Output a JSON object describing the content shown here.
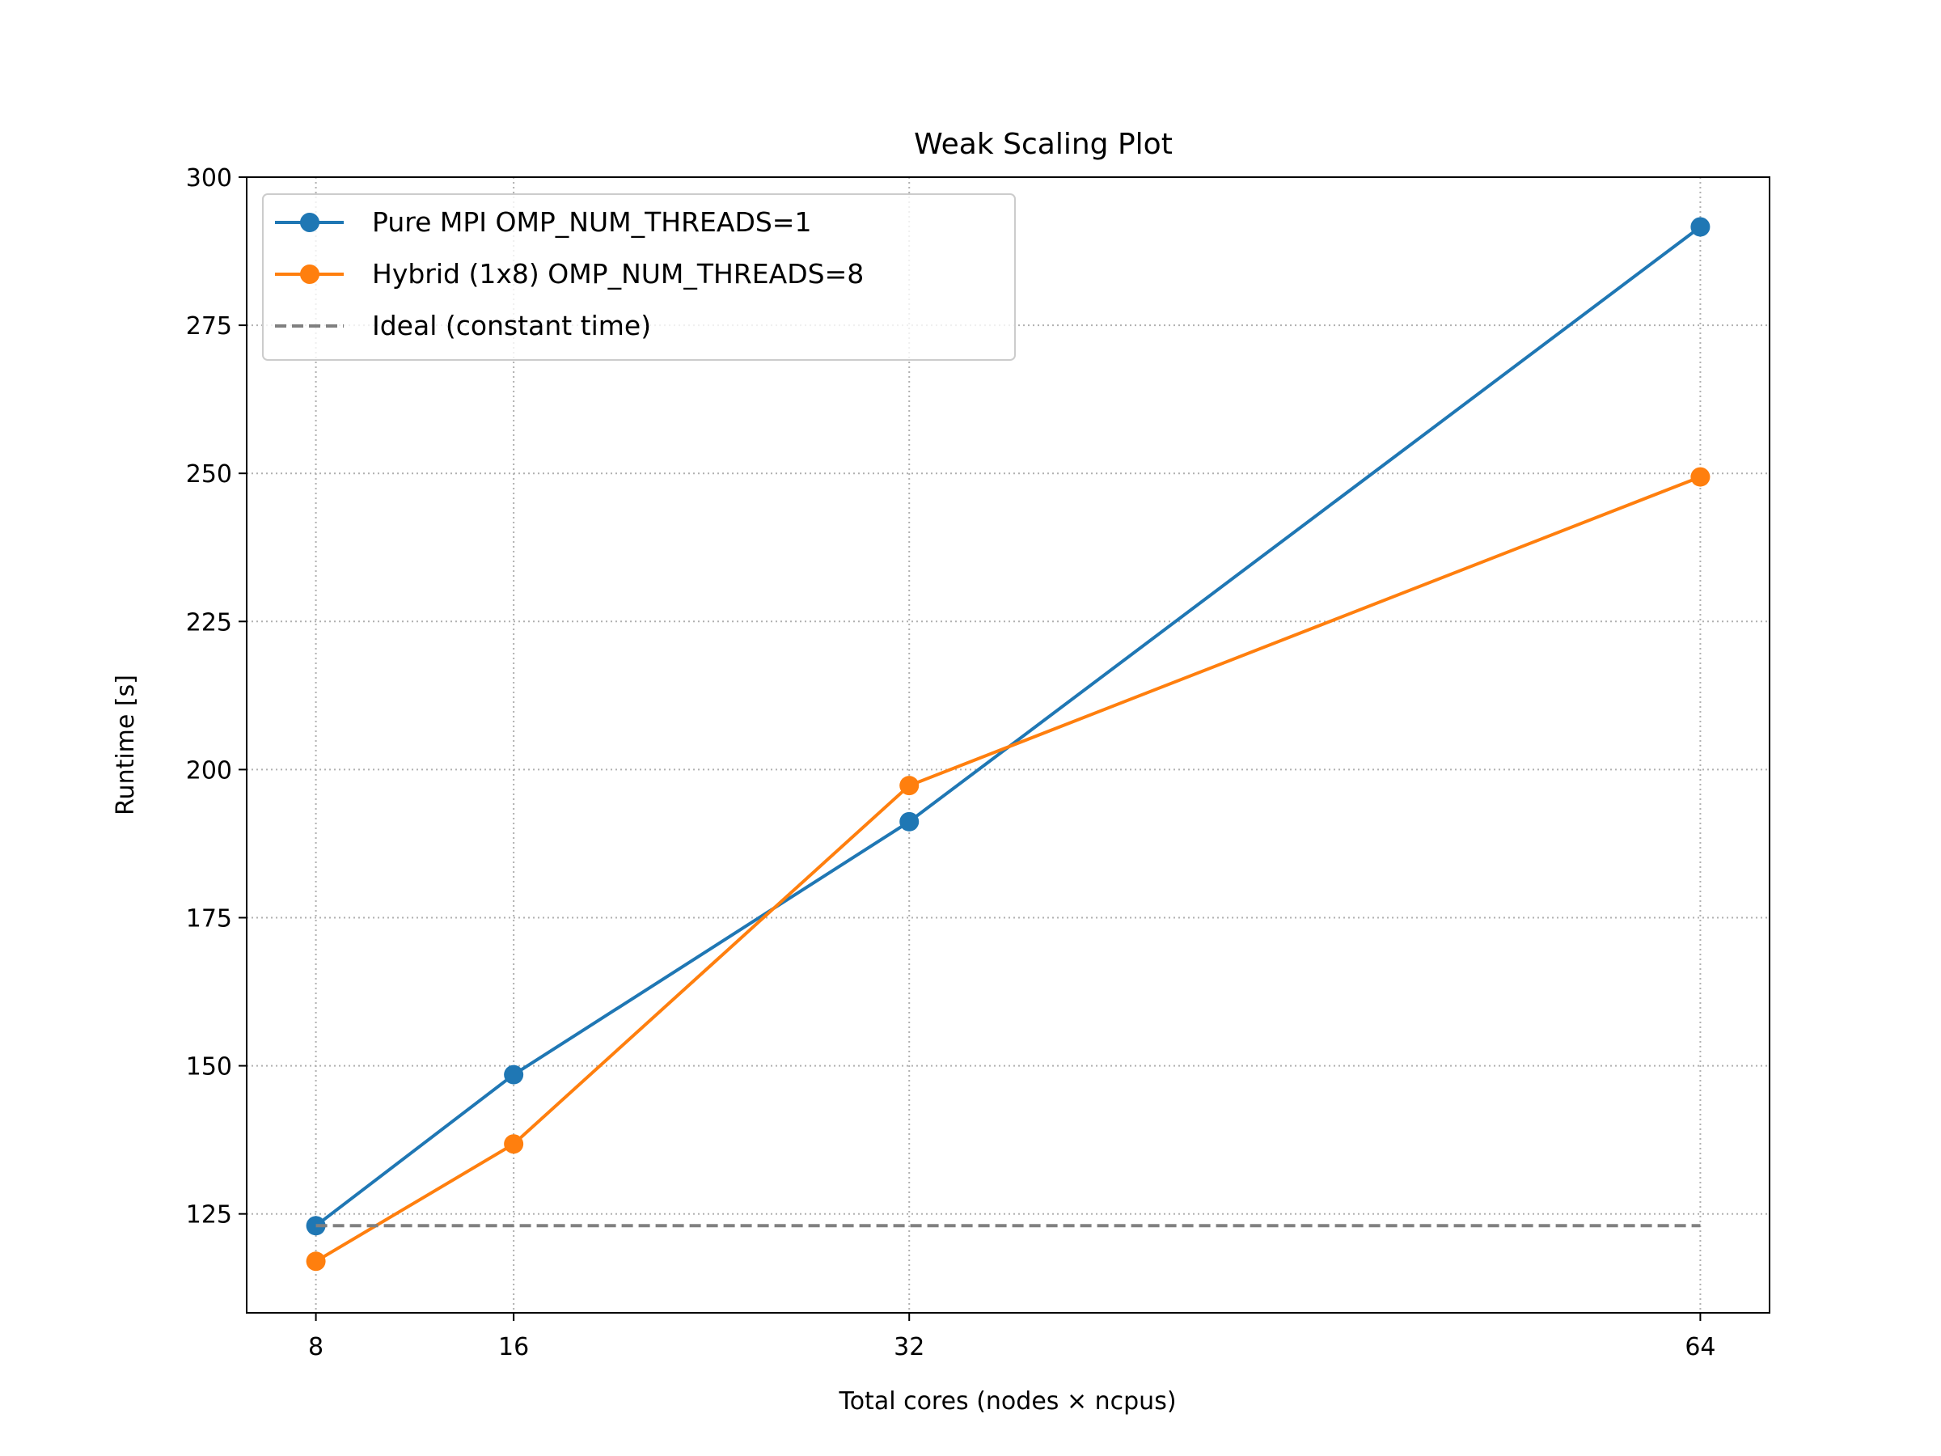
{
  "chart_data": {
    "type": "line",
    "title": "Weak Scaling Plot",
    "xlabel": "Total cores (nodes × ncpus)",
    "ylabel": "Runtime [s]",
    "x": [
      8,
      16,
      32,
      64
    ],
    "x_ticks": [
      8,
      16,
      32,
      64
    ],
    "y_ticks": [
      125,
      150,
      175,
      200,
      225,
      250,
      275,
      300
    ],
    "xlim": [
      5.2,
      66.8
    ],
    "ylim": [
      108.3,
      300
    ],
    "grid": true,
    "legend_position": "upper-left",
    "series": [
      {
        "name": "Pure MPI OMP_NUM_THREADS=1",
        "values": [
          123,
          148.5,
          191.2,
          291.6
        ],
        "color": "#1f77b4",
        "style": "solid",
        "marker": "circle"
      },
      {
        "name": "Hybrid (1x8) OMP_NUM_THREADS=8",
        "values": [
          117,
          136.8,
          197.3,
          249.4
        ],
        "color": "#ff7f0e",
        "style": "solid",
        "marker": "circle"
      },
      {
        "name": "Ideal (constant time)",
        "values": [
          123,
          123,
          123,
          123
        ],
        "color": "#808080",
        "style": "dashed",
        "marker": "none"
      }
    ]
  }
}
